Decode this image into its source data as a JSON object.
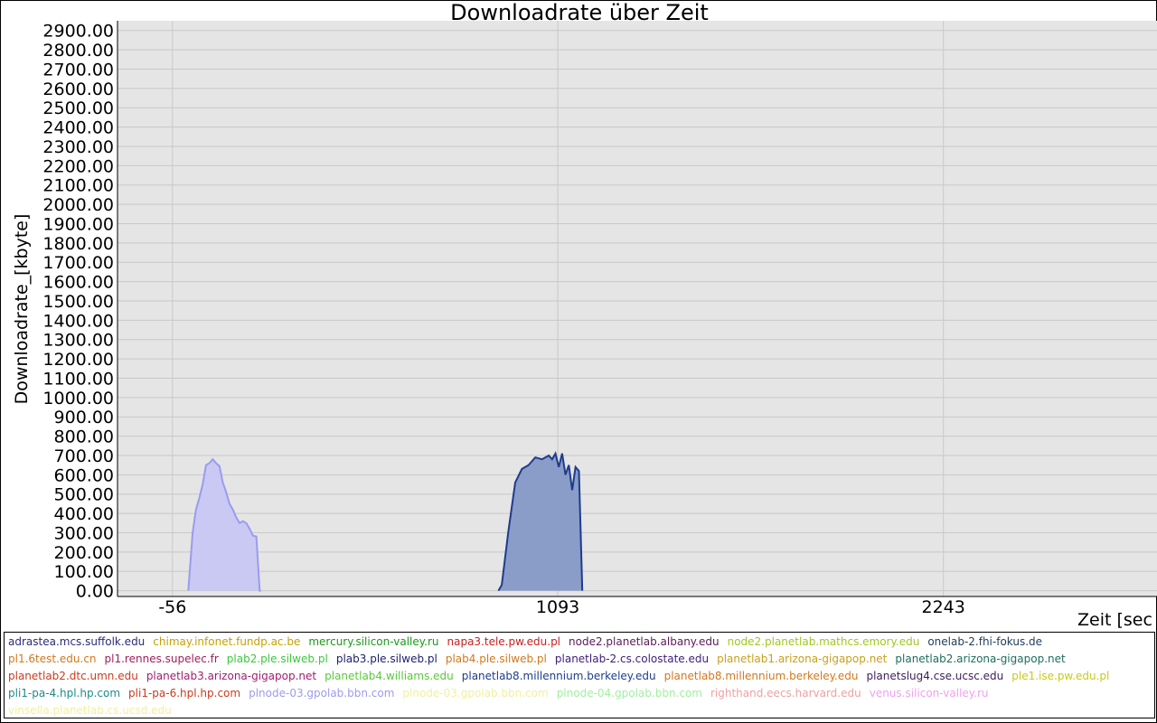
{
  "chart_data": {
    "type": "area",
    "title": "Downloadrate über Zeit",
    "xlabel": "Zeit [sec",
    "ylabel": "Downloadrate_[kbyte]",
    "xlim": [
      -220,
      2880
    ],
    "ylim": [
      -30,
      2950
    ],
    "yticks": [
      0,
      100,
      200,
      300,
      400,
      500,
      600,
      700,
      800,
      900,
      1000,
      1100,
      1200,
      1300,
      1400,
      1500,
      1600,
      1700,
      1800,
      1900,
      2000,
      2100,
      2200,
      2300,
      2400,
      2500,
      2600,
      2700,
      2800,
      2900
    ],
    "ytick_labels": [
      "0.00",
      "100.00",
      "200.00",
      "300.00",
      "400.00",
      "500.00",
      "600.00",
      "700.00",
      "800.00",
      "900.00",
      "1000.00",
      "1100.00",
      "1200.00",
      "1300.00",
      "1400.00",
      "1500.00",
      "1600.00",
      "1700.00",
      "1800.00",
      "1900.00",
      "2000.00",
      "2100.00",
      "2200.00",
      "2300.00",
      "2400.00",
      "2500.00",
      "2600.00",
      "2700.00",
      "2800.00",
      "2900.00"
    ],
    "xticks": [
      -56,
      1093,
      2243
    ],
    "xtick_labels": [
      "-56",
      "1093",
      "2243"
    ],
    "grid": true,
    "legend_position": "bottom",
    "series": [
      {
        "color": "#9b9bf0",
        "fill": "#c9c9f3",
        "x": [
          -9,
          4,
          14,
          24,
          34,
          44,
          54,
          64,
          74,
          84,
          94,
          104,
          114,
          124,
          134,
          144,
          154,
          164,
          174,
          184,
          194,
          204,
          208
        ],
        "y": [
          0,
          300,
          420,
          480,
          550,
          650,
          660,
          680,
          660,
          645,
          560,
          510,
          450,
          420,
          380,
          350,
          360,
          350,
          320,
          285,
          280,
          0,
          0
        ]
      },
      {
        "color": "#1e3c8c",
        "fill": "#8a9cc8",
        "x": [
          916,
          926,
          946,
          966,
          986,
          1006,
          1026,
          1046,
          1066,
          1076,
          1086,
          1096,
          1106,
          1116,
          1126,
          1136,
          1146,
          1156,
          1166
        ],
        "y": [
          0,
          30,
          310,
          560,
          630,
          650,
          690,
          680,
          700,
          680,
          710,
          640,
          710,
          600,
          650,
          520,
          640,
          620,
          0
        ]
      }
    ]
  },
  "legend": {
    "rows": [
      [
        {
          "label": "adrastea.mcs.suffolk.edu",
          "color": "#2b2b7a"
        },
        {
          "label": "chimay.infonet.fundp.ac.be",
          "color": "#c8a000"
        },
        {
          "label": "mercury.silicon-valley.ru",
          "color": "#1a9a1a"
        },
        {
          "label": "napa3.tele.pw.edu.pl",
          "color": "#c81e1e"
        },
        {
          "label": "node2.planetlab.albany.edu",
          "color": "#5a1a5a"
        },
        {
          "label": "node2.planetlab.mathcs.emory.edu",
          "color": "#a0c81e"
        },
        {
          "label": "onelab-2.fhi-fokus.de",
          "color": "#1e3c5a"
        }
      ],
      [
        {
          "label": "pl1.6test.edu.cn",
          "color": "#d2781e"
        },
        {
          "label": "pl1.rennes.supelec.fr",
          "color": "#a01e5a"
        },
        {
          "label": "plab2.ple.silweb.pl",
          "color": "#3cc83c"
        },
        {
          "label": "plab3.ple.silweb.pl",
          "color": "#1e1e6e"
        },
        {
          "label": "plab4.ple.silweb.pl",
          "color": "#d2781e"
        },
        {
          "label": "planetlab-2.cs.colostate.edu",
          "color": "#3c1e78"
        },
        {
          "label": "planetlab1.arizona-gigapop.net",
          "color": "#c8a01e"
        },
        {
          "label": "planetlab2.arizona-gigapop.net",
          "color": "#1e6e5a"
        }
      ],
      [
        {
          "label": "planetlab2.dtc.umn.edu",
          "color": "#c83c1e"
        },
        {
          "label": "planetlab3.arizona-gigapop.net",
          "color": "#a01e6e"
        },
        {
          "label": "planetlab4.williams.edu",
          "color": "#5ac83c"
        },
        {
          "label": "planetlab8.millennium.berkeley.edu",
          "color": "#1e3c8c"
        },
        {
          "label": "planetlab8.millennium.berkeley.edu",
          "color": "#d2781e"
        },
        {
          "label": "planetslug4.cse.ucsc.edu",
          "color": "#3c1e5a"
        },
        {
          "label": "ple1.ise.pw.edu.pl",
          "color": "#c8c81e"
        }
      ],
      [
        {
          "label": "pli1-pa-4.hpl.hp.com",
          "color": "#1e8c8c"
        },
        {
          "label": "pli1-pa-6.hpl.hp.com",
          "color": "#c83c1e"
        },
        {
          "label": "plnode-03.gpolab.bbn.com",
          "color": "#9b9bf0"
        },
        {
          "label": "plnode-03.gpolab.bbn.com",
          "color": "#f0f0a0"
        },
        {
          "label": "plnode-04.gpolab.bbn.com",
          "color": "#a0f0a0"
        },
        {
          "label": "righthand.eecs.harvard.edu",
          "color": "#f0a0a0"
        },
        {
          "label": "venus.silicon-valley.ru",
          "color": "#f0a0f0"
        }
      ],
      [
        {
          "label": "vinsella.planetlab.cs.ucsd.edu",
          "color": "#f0f0a0"
        }
      ]
    ]
  }
}
